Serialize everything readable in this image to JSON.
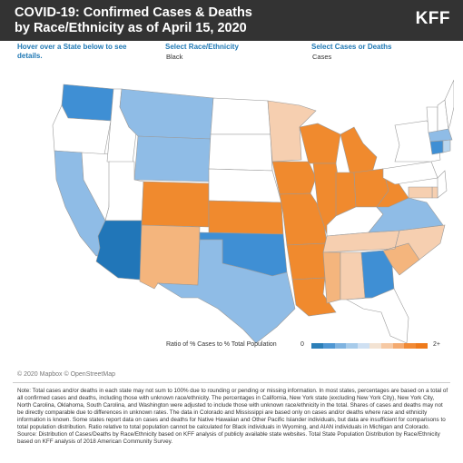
{
  "header": {
    "title_line1": "COVID-19: Confirmed Cases & Deaths",
    "title_line2": "by Race/Ethnicity as of April 15, 2020",
    "logo": "KFF"
  },
  "controls": {
    "hover_hint_line1": "Hover over a State below to see",
    "hover_hint_line2": "details.",
    "race_label": "Select Race/Ethnicity",
    "race_value": "Black",
    "metric_label": "Select Cases or Deaths",
    "metric_value": "Cases"
  },
  "legend": {
    "label": "Ratio of % Cases to % Total Population",
    "min": "0",
    "max": "2+",
    "colors": [
      "#2c7fb8",
      "#4f97d3",
      "#7fb3e0",
      "#a7cbea",
      "#cfe0f2",
      "#f3e3d3",
      "#f6c9a4",
      "#f4aa6f",
      "#f18a35",
      "#ee7a1b"
    ]
  },
  "colors": {
    "dark_blue": "#2176b8",
    "mid_blue": "#3f8fd4",
    "light_blue": "#8fbce6",
    "pale_blue": "#b8d6ef",
    "no_data": "#ffffff",
    "pale_orange": "#f6cfb0",
    "light_orange": "#f4b57d",
    "orange": "#f08a2e",
    "border": "#9a9a9a"
  },
  "states": {
    "WA": "mid_blue",
    "OR": "no_data",
    "CA": "light_blue",
    "NV": "no_data",
    "ID": "no_data",
    "MT": "light_blue",
    "WY": "light_blue",
    "UT": "no_data",
    "AZ": "dark_blue",
    "CO": "orange",
    "NM": "light_orange",
    "ND": "no_data",
    "SD": "no_data",
    "NE": "no_data",
    "KS": "orange",
    "OK": "mid_blue",
    "TX": "light_blue",
    "MN": "pale_orange",
    "IA": "orange",
    "MO": "orange",
    "AR": "orange",
    "LA": "orange",
    "WI": "orange",
    "IL": "orange",
    "MI": "orange",
    "IN": "orange",
    "OH": "orange",
    "KY": "no_data",
    "TN": "pale_orange",
    "MS": "light_orange",
    "AL": "pale_orange",
    "GA": "mid_blue",
    "FL": "no_data",
    "SC": "light_orange",
    "NC": "pale_orange",
    "VA": "light_blue",
    "WV": "orange",
    "PA": "no_data",
    "NY": "no_data",
    "VT": "no_data",
    "NH": "no_data",
    "ME": "no_data",
    "MA": "light_blue",
    "CT": "mid_blue",
    "RI": "pale_blue",
    "NJ": "no_data",
    "DE": "pale_orange",
    "MD": "pale_orange"
  },
  "attribution": "© 2020 Mapbox © OpenStreetMap",
  "note": "Note: Total cases and/or deaths in each state may not sum to 100% due to rounding or pending or missing information. In most states, percentages are based on a total of all confirmed cases and deaths, including those with unknown race/ethnicity. The percentages in California, New York state (excluding New York City), New York City, North Carolina, Oklahoma, South Carolina, and Washington were adjusted to include those with unknown race/ethnicity in the total. Shares of cases and deaths may not be directly comparable due to differences in unknown rates. The data in Colorado and Mississippi are based only on cases and/or deaths where race and ethnicity information is known. Some states report data on cases and deaths for Native Hawaiian and Other Pacific Islander individuals, but data are insufficient for comparisons to total population distribution. Ratio relative to total population cannot be calculated for Black individuals in Wyoming, and AIAN individuals in Michigan and Colorado.",
  "source": "Source: Distribution of Cases/Deaths by Race/Ethnicity based on KFF analysis of publicly available state websites. Total State Population Distribution by Race/Ethnicity based on KFF analysis of 2018 American Community Survey."
}
